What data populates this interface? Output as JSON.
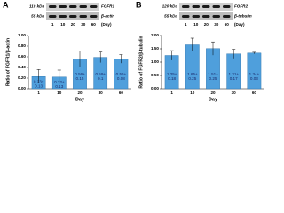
{
  "chart_data": [
    {
      "type": "bar",
      "panel_label": "A",
      "blot": {
        "bands": [
          {
            "size": "110 kDa",
            "name": "FGFR1"
          },
          {
            "size": "55 kDa",
            "name": "β-actin"
          }
        ],
        "lanes": [
          "1",
          "10",
          "20",
          "30",
          "60"
        ],
        "lane_unit": "(Day)"
      },
      "y_label": "Ratio of FGFR1/β-actin",
      "x_label": "Day",
      "categories": [
        "1",
        "10",
        "20",
        "30",
        "60"
      ],
      "values": [
        0.23,
        0.22,
        0.56,
        0.59,
        0.56
      ],
      "value_labels": [
        "0.23±",
        "0.22±",
        "0.56±",
        "0.59±",
        "0.56±"
      ],
      "errors": [
        0.13,
        0.13,
        0.15,
        0.1,
        0.08
      ],
      "color": "#4f9fdc",
      "ylim": [
        0,
        1
      ],
      "yticks": [
        {
          "value": 0,
          "label": "0.00"
        },
        {
          "value": 0.2,
          "label": "0.20"
        },
        {
          "value": 0.4,
          "label": "0.40"
        },
        {
          "value": 0.6,
          "label": "0.60"
        },
        {
          "value": 0.8,
          "label": "0.80"
        },
        {
          "value": 1,
          "label": "1.00"
        }
      ]
    },
    {
      "type": "bar",
      "panel_label": "B",
      "blot": {
        "bands": [
          {
            "size": "120 kDa",
            "name": "FGFR2"
          },
          {
            "size": "55 kDa",
            "name": "β-tubulin"
          }
        ],
        "lanes": [
          "1",
          "10",
          "20",
          "30",
          "60"
        ],
        "lane_unit": "(Day)"
      },
      "y_label": "Ratio of FGFR2/β-tubulin",
      "x_label": "Day",
      "categories": [
        "1",
        "10",
        "20",
        "30",
        "60"
      ],
      "values": [
        1.25,
        1.65,
        1.51,
        1.31,
        1.34
      ],
      "value_labels": [
        "1.25±",
        "1.65±",
        "1.51±",
        "1.31±",
        "1.34±"
      ],
      "errors": [
        0.18,
        0.25,
        0.25,
        0.17,
        0.03
      ],
      "color": "#4f9fdc",
      "ylim": [
        0,
        2
      ],
      "yticks": [
        {
          "value": 0,
          "label": "0.00"
        },
        {
          "value": 0.5,
          "label": "0.50"
        },
        {
          "value": 1,
          "label": "1.00"
        },
        {
          "value": 1.5,
          "label": "1.50"
        },
        {
          "value": 2,
          "label": "2.00"
        }
      ]
    }
  ]
}
